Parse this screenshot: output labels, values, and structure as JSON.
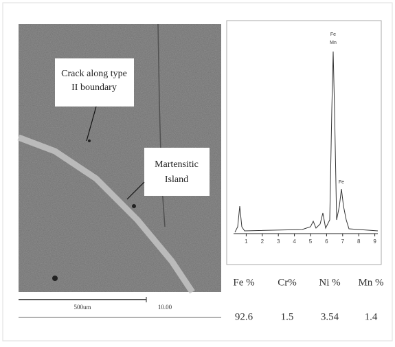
{
  "sem_image": {
    "annotations": [
      [
        "Crack along type",
        "II boundary"
      ],
      [
        "Martensitic",
        "Island"
      ]
    ],
    "scale_label": "500um",
    "scale_note": "10.00"
  },
  "spectrum": {
    "xticks": [
      1,
      2,
      3,
      4,
      5,
      6,
      7,
      8,
      9
    ],
    "peak_labels": [
      "Fe",
      "Mn",
      "Fe"
    ]
  },
  "table": {
    "headers": [
      "Fe %",
      "Cr%",
      "Ni %",
      "Mn %"
    ],
    "values": [
      "92.6",
      "1.5",
      "3.54",
      "1.4"
    ]
  }
}
